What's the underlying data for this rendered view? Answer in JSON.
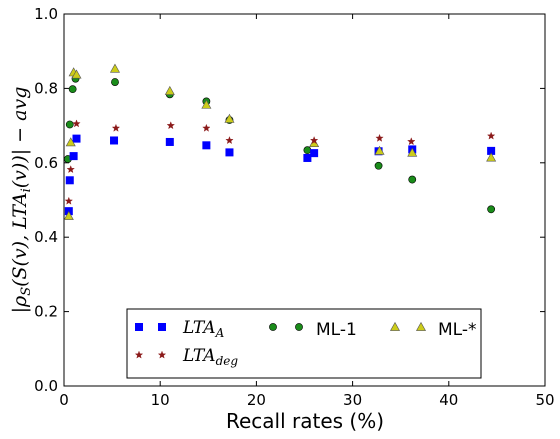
{
  "chart_data": {
    "type": "scatter",
    "xlabel": "Recall rates (%)",
    "ylabel": "|ρS(S(v),LTAi(v))|−avg",
    "xlim": [
      0,
      50
    ],
    "ylim": [
      0.0,
      1.0
    ],
    "x_ticks": [
      "0",
      "10",
      "20",
      "30",
      "40",
      "50"
    ],
    "y_ticks": [
      "0.0",
      "0.2",
      "0.4",
      "0.6",
      "0.8",
      "1.0"
    ],
    "grid": false,
    "legend_position": "bottom-center",
    "series": [
      {
        "name": "LTA_A",
        "marker": "square",
        "color": "#0000ff",
        "points": [
          [
            0.5,
            0.47
          ],
          [
            0.6,
            0.553
          ],
          [
            1.0,
            0.618
          ],
          [
            1.3,
            0.665
          ],
          [
            5.2,
            0.66
          ],
          [
            11.0,
            0.656
          ],
          [
            14.8,
            0.647
          ],
          [
            17.2,
            0.628
          ],
          [
            25.3,
            0.613
          ],
          [
            26.0,
            0.626
          ],
          [
            32.7,
            0.631
          ],
          [
            36.2,
            0.636
          ],
          [
            44.4,
            0.632
          ]
        ]
      },
      {
        "name": "LTA_deg",
        "marker": "star",
        "color": "#8b1a1a",
        "points": [
          [
            0.5,
            0.497
          ],
          [
            0.7,
            0.582
          ],
          [
            1.3,
            0.705
          ],
          [
            5.4,
            0.693
          ],
          [
            11.1,
            0.7
          ],
          [
            14.8,
            0.693
          ],
          [
            17.2,
            0.66
          ],
          [
            26.0,
            0.66
          ],
          [
            32.8,
            0.666
          ],
          [
            36.1,
            0.657
          ],
          [
            44.4,
            0.672
          ]
        ]
      },
      {
        "name": "ML-1",
        "marker": "circle",
        "color": "#1a8c1a",
        "points": [
          [
            0.4,
            0.61
          ],
          [
            0.6,
            0.703
          ],
          [
            0.9,
            0.798
          ],
          [
            1.2,
            0.826
          ],
          [
            5.3,
            0.817
          ],
          [
            11.0,
            0.784
          ],
          [
            14.8,
            0.765
          ],
          [
            17.2,
            0.715
          ],
          [
            25.3,
            0.634
          ],
          [
            32.7,
            0.592
          ],
          [
            36.2,
            0.555
          ],
          [
            44.4,
            0.475
          ]
        ]
      },
      {
        "name": "ML-*",
        "marker": "triangle",
        "color": "#cccc1a",
        "points": [
          [
            0.5,
            0.457
          ],
          [
            0.7,
            0.655
          ],
          [
            1.0,
            0.843
          ],
          [
            1.3,
            0.837
          ],
          [
            5.3,
            0.853
          ],
          [
            11.0,
            0.793
          ],
          [
            14.8,
            0.756
          ],
          [
            17.2,
            0.718
          ],
          [
            26.0,
            0.653
          ],
          [
            32.8,
            0.632
          ],
          [
            36.2,
            0.627
          ],
          [
            44.4,
            0.614
          ]
        ]
      }
    ]
  }
}
